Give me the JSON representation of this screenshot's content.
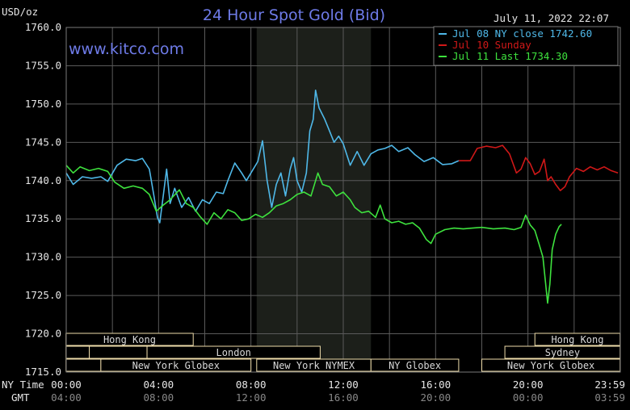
{
  "header": {
    "unit": "USD/oz",
    "title": "24 Hour Spot Gold (Bid)",
    "timestamp": "July 11, 2022 22:07",
    "website": "www.kitco.com"
  },
  "axis_rows": {
    "ny_time_label": "NY Time",
    "gmt_label": "GMT"
  },
  "colors": {
    "background": "#000000",
    "plot_bg": "#000000",
    "shade": "#1c1f1a",
    "grid": "#5a5a5a",
    "title": "#6e7be8",
    "session_box": "#eedcaa",
    "jul08": "#4fb8e8",
    "jul10": "#d01818",
    "jul11": "#3ee23e"
  },
  "chart_data": {
    "type": "line",
    "title": "24 Hour Spot Gold (Bid)",
    "ylabel": "USD/oz",
    "ylim": [
      1715.0,
      1760.0
    ],
    "xlim": [
      0,
      24
    ],
    "y_ticks": [
      "1760.0",
      "1755.0",
      "1750.0",
      "1745.0",
      "1740.0",
      "1735.0",
      "1730.0",
      "1725.0",
      "1720.0",
      "1715.0"
    ],
    "x_ticks_ny": [
      "00:00",
      "04:00",
      "08:00",
      "12:00",
      "16:00",
      "20:00",
      "23:59"
    ],
    "x_ticks_gmt": [
      "04:00",
      "08:00",
      "12:00",
      "16:00",
      "20:00",
      "00:00",
      "03:59"
    ],
    "shaded_range": [
      8.25,
      13.2
    ],
    "legend": [
      {
        "label": "Jul 08 NY close 1742.60",
        "color": "#4fb8e8"
      },
      {
        "label": "Jul 10 Sunday",
        "color": "#d01818"
      },
      {
        "label": "Jul 11 Last 1734.30",
        "color": "#3ee23e"
      }
    ],
    "series": [
      {
        "name": "Jul 08 NY close 1742.60",
        "color": "#4fb8e8",
        "points": [
          [
            0.0,
            1741.0
          ],
          [
            0.3,
            1739.5
          ],
          [
            0.7,
            1740.5
          ],
          [
            1.1,
            1740.3
          ],
          [
            1.5,
            1740.5
          ],
          [
            1.8,
            1739.9
          ],
          [
            2.2,
            1742.0
          ],
          [
            2.6,
            1742.8
          ],
          [
            3.0,
            1742.6
          ],
          [
            3.3,
            1742.9
          ],
          [
            3.6,
            1741.5
          ],
          [
            3.8,
            1738.0
          ],
          [
            3.95,
            1735.2
          ],
          [
            4.05,
            1734.5
          ],
          [
            4.2,
            1738.0
          ],
          [
            4.35,
            1741.5
          ],
          [
            4.5,
            1737.0
          ],
          [
            4.7,
            1739.0
          ],
          [
            5.0,
            1736.5
          ],
          [
            5.3,
            1737.8
          ],
          [
            5.6,
            1736.0
          ],
          [
            5.9,
            1737.5
          ],
          [
            6.2,
            1737.0
          ],
          [
            6.5,
            1738.5
          ],
          [
            6.8,
            1738.3
          ],
          [
            7.0,
            1740.0
          ],
          [
            7.3,
            1742.3
          ],
          [
            7.6,
            1741.0
          ],
          [
            7.8,
            1740.0
          ],
          [
            8.0,
            1741.0
          ],
          [
            8.3,
            1742.5
          ],
          [
            8.5,
            1745.2
          ],
          [
            8.7,
            1740.0
          ],
          [
            8.9,
            1736.5
          ],
          [
            9.1,
            1739.5
          ],
          [
            9.3,
            1741.0
          ],
          [
            9.5,
            1738.0
          ],
          [
            9.7,
            1741.5
          ],
          [
            9.85,
            1743.0
          ],
          [
            10.0,
            1740.0
          ],
          [
            10.2,
            1738.5
          ],
          [
            10.4,
            1741.0
          ],
          [
            10.55,
            1746.5
          ],
          [
            10.7,
            1748.0
          ],
          [
            10.8,
            1751.8
          ],
          [
            10.95,
            1749.5
          ],
          [
            11.2,
            1748.0
          ],
          [
            11.4,
            1746.5
          ],
          [
            11.6,
            1745.0
          ],
          [
            11.8,
            1745.8
          ],
          [
            12.0,
            1744.8
          ],
          [
            12.3,
            1742.0
          ],
          [
            12.6,
            1743.8
          ],
          [
            12.9,
            1742.0
          ],
          [
            13.2,
            1743.5
          ],
          [
            13.5,
            1744.0
          ],
          [
            13.8,
            1744.2
          ],
          [
            14.1,
            1744.6
          ],
          [
            14.4,
            1743.8
          ],
          [
            14.8,
            1744.3
          ],
          [
            15.1,
            1743.4
          ],
          [
            15.5,
            1742.5
          ],
          [
            15.9,
            1743.0
          ],
          [
            16.3,
            1742.1
          ],
          [
            16.7,
            1742.2
          ],
          [
            17.0,
            1742.6
          ]
        ]
      },
      {
        "name": "Jul 10 Sunday",
        "color": "#d01818",
        "points": [
          [
            17.0,
            1742.6
          ],
          [
            17.5,
            1742.6
          ],
          [
            17.8,
            1744.2
          ],
          [
            18.2,
            1744.5
          ],
          [
            18.6,
            1744.3
          ],
          [
            18.9,
            1744.6
          ],
          [
            19.2,
            1743.5
          ],
          [
            19.5,
            1741.0
          ],
          [
            19.7,
            1741.5
          ],
          [
            19.9,
            1743.0
          ],
          [
            20.1,
            1742.2
          ],
          [
            20.3,
            1740.8
          ],
          [
            20.5,
            1741.2
          ],
          [
            20.7,
            1742.8
          ],
          [
            20.85,
            1740.0
          ],
          [
            21.0,
            1740.5
          ],
          [
            21.2,
            1739.5
          ],
          [
            21.4,
            1738.7
          ],
          [
            21.6,
            1739.2
          ],
          [
            21.8,
            1740.5
          ],
          [
            22.1,
            1741.6
          ],
          [
            22.4,
            1741.2
          ],
          [
            22.7,
            1741.8
          ],
          [
            23.0,
            1741.4
          ],
          [
            23.3,
            1741.8
          ],
          [
            23.6,
            1741.3
          ],
          [
            23.9,
            1741.0
          ]
        ]
      },
      {
        "name": "Jul 11 Last 1734.30",
        "color": "#3ee23e",
        "points": [
          [
            0.0,
            1742.0
          ],
          [
            0.3,
            1741.0
          ],
          [
            0.6,
            1741.8
          ],
          [
            1.0,
            1741.3
          ],
          [
            1.4,
            1741.6
          ],
          [
            1.8,
            1741.2
          ],
          [
            2.1,
            1739.8
          ],
          [
            2.5,
            1739.0
          ],
          [
            2.9,
            1739.3
          ],
          [
            3.3,
            1739.0
          ],
          [
            3.6,
            1738.2
          ],
          [
            3.9,
            1736.0
          ],
          [
            4.2,
            1736.8
          ],
          [
            4.5,
            1737.5
          ],
          [
            4.9,
            1738.8
          ],
          [
            5.2,
            1737.0
          ],
          [
            5.5,
            1736.5
          ],
          [
            5.8,
            1735.3
          ],
          [
            6.1,
            1734.3
          ],
          [
            6.4,
            1735.8
          ],
          [
            6.7,
            1735.0
          ],
          [
            7.0,
            1736.2
          ],
          [
            7.3,
            1735.8
          ],
          [
            7.6,
            1734.8
          ],
          [
            7.9,
            1735.0
          ],
          [
            8.2,
            1735.6
          ],
          [
            8.5,
            1735.2
          ],
          [
            8.8,
            1735.8
          ],
          [
            9.1,
            1736.7
          ],
          [
            9.4,
            1737.0
          ],
          [
            9.7,
            1737.5
          ],
          [
            10.0,
            1738.2
          ],
          [
            10.3,
            1738.5
          ],
          [
            10.6,
            1738.0
          ],
          [
            10.9,
            1741.0
          ],
          [
            11.1,
            1739.5
          ],
          [
            11.4,
            1739.2
          ],
          [
            11.7,
            1738.0
          ],
          [
            12.0,
            1738.5
          ],
          [
            12.3,
            1737.5
          ],
          [
            12.5,
            1736.5
          ],
          [
            12.8,
            1735.8
          ],
          [
            13.1,
            1736.0
          ],
          [
            13.4,
            1735.2
          ],
          [
            13.6,
            1736.8
          ],
          [
            13.8,
            1735.0
          ],
          [
            14.1,
            1734.5
          ],
          [
            14.4,
            1734.7
          ],
          [
            14.7,
            1734.3
          ],
          [
            15.0,
            1734.5
          ],
          [
            15.3,
            1733.8
          ],
          [
            15.6,
            1732.3
          ],
          [
            15.8,
            1731.8
          ],
          [
            16.0,
            1733.0
          ],
          [
            16.4,
            1733.6
          ],
          [
            16.8,
            1733.8
          ],
          [
            17.2,
            1733.7
          ],
          [
            17.6,
            1733.8
          ],
          [
            18.0,
            1733.9
          ],
          [
            18.5,
            1733.7
          ],
          [
            19.0,
            1733.8
          ],
          [
            19.4,
            1733.6
          ],
          [
            19.7,
            1733.9
          ],
          [
            19.9,
            1735.5
          ],
          [
            20.1,
            1734.2
          ],
          [
            20.3,
            1733.5
          ],
          [
            20.5,
            1731.5
          ],
          [
            20.65,
            1730.0
          ],
          [
            20.75,
            1727.0
          ],
          [
            20.85,
            1724.0
          ],
          [
            20.95,
            1726.5
          ],
          [
            21.05,
            1731.0
          ],
          [
            21.2,
            1733.0
          ],
          [
            21.35,
            1734.0
          ],
          [
            21.45,
            1734.3
          ]
        ]
      }
    ],
    "sessions": [
      {
        "label": "Hong Kong",
        "start": -0.01,
        "end": 5.5,
        "row": 0
      },
      {
        "label": "",
        "start": -0.01,
        "end": 1.0,
        "row": 1
      },
      {
        "label": "",
        "start": 1.0,
        "end": 3.5,
        "row": 1
      },
      {
        "label": "London",
        "start": 3.5,
        "end": 11.0,
        "row": 1
      },
      {
        "label": "",
        "start": -0.01,
        "end": 1.5,
        "row": 2
      },
      {
        "label": "New York Globex",
        "start": 1.5,
        "end": 8.0,
        "row": 2
      },
      {
        "label": "New York NYMEX",
        "start": 8.25,
        "end": 13.2,
        "row": 2
      },
      {
        "label": "NY Globex",
        "start": 13.2,
        "end": 17.0,
        "row": 2
      },
      {
        "label": "Hong Kong",
        "start": 20.3,
        "end": 23.99,
        "row": 0
      },
      {
        "label": "Sydney",
        "start": 19.0,
        "end": 23.99,
        "row": 1
      },
      {
        "label": "New York Globex",
        "start": 18.0,
        "end": 23.99,
        "row": 2
      }
    ]
  }
}
